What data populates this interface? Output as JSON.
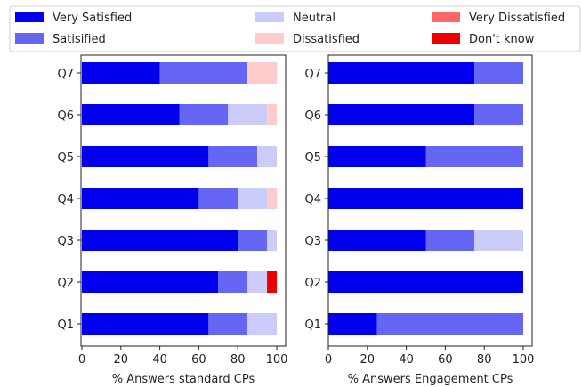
{
  "chart_data": [
    {
      "type": "bar",
      "orientation": "horizontal",
      "stacked": true,
      "categories": [
        "Q1",
        "Q2",
        "Q3",
        "Q4",
        "Q5",
        "Q6",
        "Q7"
      ],
      "xlabel": "% Answers standard CPs",
      "ylabel": "",
      "xlim": [
        0,
        100
      ],
      "xticks": [
        0,
        20,
        40,
        60,
        80,
        100
      ],
      "grid": false,
      "series": [
        {
          "name": "Very Satisfied",
          "color": "#0000ee",
          "values": [
            65,
            70,
            80,
            60,
            65,
            50,
            40
          ]
        },
        {
          "name": "Satisified",
          "color": "#6666f5",
          "values": [
            20,
            15,
            15,
            20,
            25,
            25,
            45
          ]
        },
        {
          "name": "Neutral",
          "color": "#ccccfb",
          "values": [
            15,
            10,
            5,
            15,
            10,
            20,
            0
          ]
        },
        {
          "name": "Dissatisfied",
          "color": "#ffcccc",
          "values": [
            0,
            0,
            0,
            5,
            0,
            5,
            15
          ]
        },
        {
          "name": "Very Dissatisfied",
          "color": "#ff6666",
          "values": [
            0,
            0,
            0,
            0,
            0,
            0,
            0
          ]
        },
        {
          "name": "Don't know",
          "color": "#ee0000",
          "values": [
            0,
            5,
            0,
            0,
            0,
            0,
            0
          ]
        }
      ]
    },
    {
      "type": "bar",
      "orientation": "horizontal",
      "stacked": true,
      "categories": [
        "Q1",
        "Q2",
        "Q3",
        "Q4",
        "Q5",
        "Q6",
        "Q7"
      ],
      "xlabel": "% Answers Engagement CPs",
      "ylabel": "",
      "xlim": [
        0,
        100
      ],
      "xticks": [
        0,
        20,
        40,
        60,
        80,
        100
      ],
      "grid": false,
      "series": [
        {
          "name": "Very Satisfied",
          "color": "#0000ee",
          "values": [
            25,
            100,
            50,
            100,
            50,
            75,
            75
          ]
        },
        {
          "name": "Satisified",
          "color": "#6666f5",
          "values": [
            75,
            0,
            25,
            0,
            50,
            25,
            25
          ]
        },
        {
          "name": "Neutral",
          "color": "#ccccfb",
          "values": [
            0,
            0,
            25,
            0,
            0,
            0,
            0
          ]
        },
        {
          "name": "Dissatisfied",
          "color": "#ffcccc",
          "values": [
            0,
            0,
            0,
            0,
            0,
            0,
            0
          ]
        },
        {
          "name": "Very Dissatisfied",
          "color": "#ff6666",
          "values": [
            0,
            0,
            0,
            0,
            0,
            0,
            0
          ]
        },
        {
          "name": "Don't know",
          "color": "#ee0000",
          "values": [
            0,
            0,
            0,
            0,
            0,
            0,
            0
          ]
        }
      ]
    }
  ],
  "legend": {
    "placement": "top",
    "columns": 3,
    "entries": [
      {
        "label": "Very Satisfied",
        "color": "#0000ee"
      },
      {
        "label": "Satisified",
        "color": "#6666f5"
      },
      {
        "label": "Neutral",
        "color": "#ccccfb"
      },
      {
        "label": "Dissatisfied",
        "color": "#ffcccc"
      },
      {
        "label": "Very Dissatisfied",
        "color": "#ff6666"
      },
      {
        "label": "Don't know",
        "color": "#ee0000"
      }
    ]
  }
}
